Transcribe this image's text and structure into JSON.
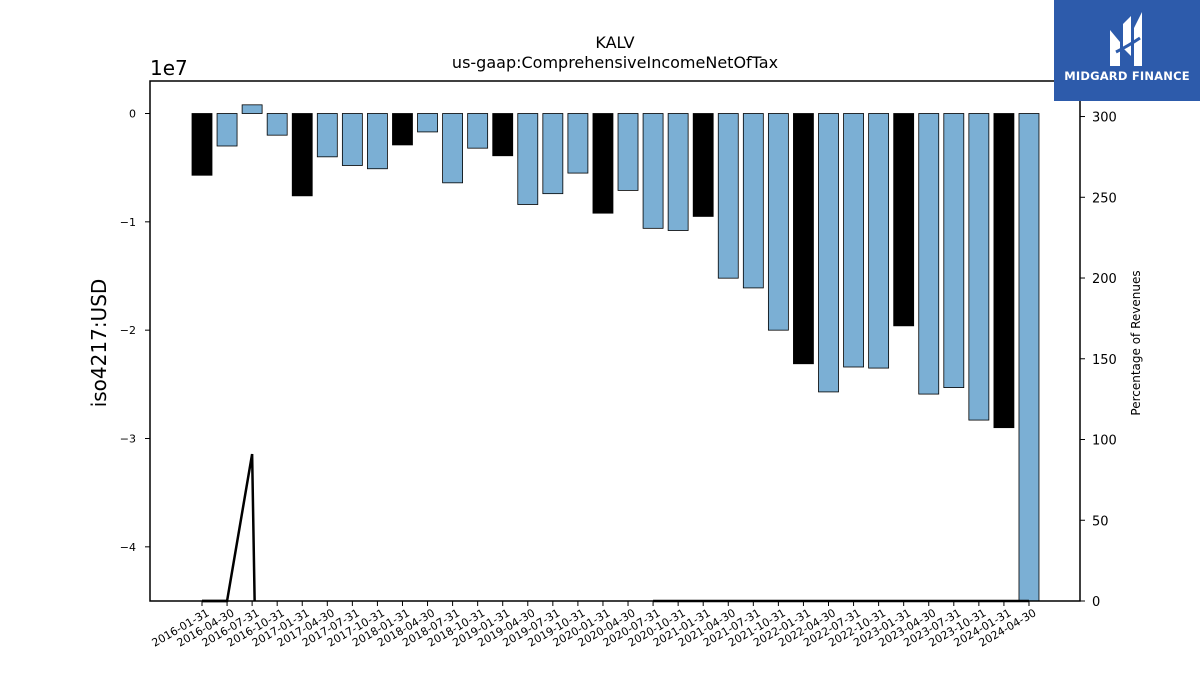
{
  "chart_data": {
    "type": "bar",
    "title": "KALV",
    "subtitle": "us-gaap:ComprehensiveIncomeNetOfTax",
    "ylabel": "iso4217:USD",
    "y_offset_label": "1e7",
    "y2label": "Percentage of Revenues",
    "ylim": [
      -4.5,
      0.3
    ],
    "y_ticks": [
      "0",
      "−1",
      "−2",
      "−3",
      "−4"
    ],
    "y2lim": [
      0,
      322
    ],
    "y2_ticks": [
      "0",
      "50",
      "100",
      "150",
      "200",
      "250",
      "300"
    ],
    "grid": false,
    "colors": {
      "annual": "#000000",
      "quarterly": "#7bafd4",
      "line": "#000000"
    },
    "categories": [
      "2016-01-31",
      "2016-04-30",
      "2016-07-31",
      "2016-10-31",
      "2017-01-31",
      "2017-04-30",
      "2017-07-31",
      "2017-10-31",
      "2018-01-31",
      "2018-04-30",
      "2018-07-31",
      "2018-10-31",
      "2019-01-31",
      "2019-04-30",
      "2019-07-31",
      "2019-10-31",
      "2020-01-31",
      "2020-04-30",
      "2020-07-31",
      "2020-10-31",
      "2021-01-31",
      "2021-04-30",
      "2021-07-31",
      "2021-10-31",
      "2022-01-31",
      "2022-04-30",
      "2022-07-31",
      "2022-10-31",
      "2023-01-31",
      "2023-04-30",
      "2023-07-31",
      "2023-10-31",
      "2024-01-31",
      "2024-04-30"
    ],
    "values": [
      -0.57,
      -0.3,
      0.08,
      -0.2,
      -0.76,
      -0.4,
      -0.48,
      -0.51,
      -0.29,
      -0.17,
      -0.64,
      -0.32,
      -0.39,
      -0.84,
      -0.74,
      -0.55,
      -0.92,
      -0.71,
      -1.06,
      -1.08,
      -0.95,
      -1.52,
      -1.61,
      -2.0,
      -2.31,
      -2.57,
      -2.34,
      -2.35,
      -1.96,
      -2.59,
      -2.53,
      -2.83,
      -2.9,
      -4.5
    ],
    "bar_types": [
      "annual",
      "quarterly",
      "quarterly",
      "quarterly",
      "annual",
      "quarterly",
      "quarterly",
      "quarterly",
      "annual",
      "quarterly",
      "quarterly",
      "quarterly",
      "annual",
      "quarterly",
      "quarterly",
      "quarterly",
      "annual",
      "quarterly",
      "quarterly",
      "quarterly",
      "annual",
      "quarterly",
      "quarterly",
      "quarterly",
      "annual",
      "quarterly",
      "quarterly",
      "quarterly",
      "annual",
      "quarterly",
      "quarterly",
      "quarterly",
      "annual",
      "quarterly"
    ],
    "line_series": {
      "x": [
        0,
        1,
        2,
        2.1
      ],
      "y": [
        0,
        0,
        91,
        0
      ],
      "segments_zero": [
        [
          0,
          1
        ],
        [
          18,
          33
        ]
      ]
    }
  },
  "logo": {
    "text": "MIDGARD FINANCE"
  }
}
